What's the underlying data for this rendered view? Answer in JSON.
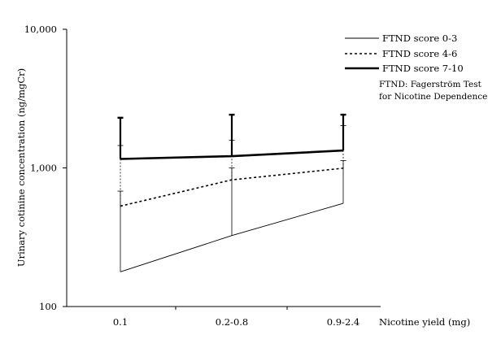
{
  "chart_data": {
    "type": "line",
    "categories": [
      "0.1",
      "0.2-0.8",
      "0.9-2.4"
    ],
    "xlabel": "Nicotine yield (mg)",
    "ylabel": "Urinary cotinine concentration (ng/mgCr)",
    "yscale": "log",
    "ylim": [
      100,
      10000
    ],
    "yticks": [
      100,
      1000,
      10000
    ],
    "ytick_labels": [
      "100",
      "1,000",
      "10,000"
    ],
    "grid": false,
    "legend_position": "top-right",
    "series": [
      {
        "name": "FTND score 0-3",
        "values": [
          178,
          325,
          555
        ],
        "error_upper": [
          680,
          1000,
          1130
        ],
        "style": "thin-solid",
        "color": "#000000"
      },
      {
        "name": "FTND score 4-6",
        "values": [
          530,
          820,
          995
        ],
        "error_upper": [
          1450,
          1580,
          2020
        ],
        "style": "dashed",
        "color": "#000000"
      },
      {
        "name": "FTND score 7-10",
        "values": [
          1160,
          1215,
          1335
        ],
        "error_upper": [
          2300,
          2420,
          2420
        ],
        "style": "thick-solid",
        "color": "#000000"
      }
    ],
    "note_lines": [
      "FTND: Fagerström Test",
      "for Nicotine Dependence"
    ]
  }
}
